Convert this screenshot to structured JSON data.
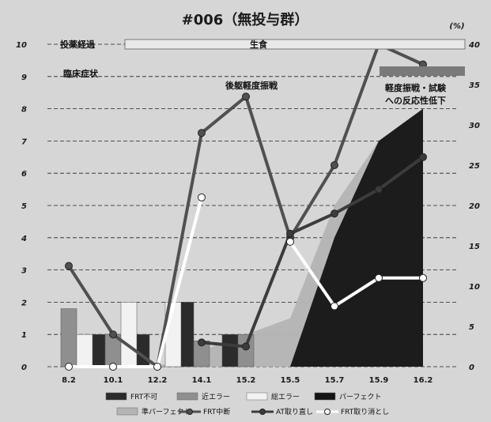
{
  "chart_data": {
    "type": "bar",
    "title": "#006（無投与群）",
    "y2_unit_label": "(%)",
    "categories": [
      "8.2",
      "10.1",
      "12.2",
      "14.1",
      "15.2",
      "15.5",
      "15.7",
      "15.9",
      "16.2"
    ],
    "ylim": [
      0,
      10
    ],
    "y_ticks": [
      "0",
      "1",
      "2",
      "3",
      "4",
      "5",
      "6",
      "7",
      "8",
      "9",
      "10"
    ],
    "y2lim": [
      0,
      40
    ],
    "y2_ticks": [
      "0",
      "5",
      "10",
      "15",
      "20",
      "25",
      "30",
      "35",
      "40"
    ],
    "grid": true,
    "legend_position": "bottom",
    "series": [
      {
        "name": "FRT不可",
        "kind": "bar",
        "axis": "left",
        "color": "#2b2b2b",
        "values": [
          0,
          1,
          1,
          2,
          1,
          0,
          0,
          0,
          0
        ]
      },
      {
        "name": "近エラー",
        "kind": "bar",
        "axis": "left",
        "color": "#8f8f8f",
        "values": [
          1.8,
          1,
          0,
          0.8,
          1,
          0,
          0,
          0,
          0
        ]
      },
      {
        "name": "総エラー",
        "kind": "bar",
        "axis": "left",
        "color": "#f2f2f2",
        "values": [
          1,
          2,
          2,
          0,
          0,
          0,
          0,
          0,
          0
        ]
      },
      {
        "name": "パーフェクト",
        "kind": "area",
        "axis": "left",
        "color": "#141414",
        "values": [
          0,
          0,
          0,
          0,
          0,
          0,
          4,
          7,
          8
        ]
      },
      {
        "name": "準パーフェクト",
        "kind": "area",
        "axis": "left",
        "color": "#b4b4b4",
        "values": [
          0,
          0,
          0,
          0.5,
          1,
          1.5,
          5,
          7,
          8
        ]
      },
      {
        "name": "FRT中断",
        "kind": "line",
        "axis": "right",
        "color": "#505050",
        "values": [
          12.5,
          4,
          0,
          29,
          33.5,
          16,
          25,
          40,
          37.5
        ]
      },
      {
        "name": "AT取り直し",
        "kind": "line",
        "axis": "right",
        "color": "#3c3c3c",
        "values": [
          null,
          0,
          null,
          3,
          2.5,
          16.5,
          19,
          22,
          26
        ]
      },
      {
        "name": "FRT取り消とし",
        "kind": "line",
        "axis": "right",
        "color": "#ffffff",
        "values": [
          0,
          0,
          0,
          21,
          null,
          15.5,
          7.5,
          11,
          11
        ]
      }
    ],
    "annotations": {
      "row1_label": "投薬経過",
      "row1_text": "生食",
      "row2_label": "臨床症状",
      "note1": "後躯軽度振戦",
      "note2_line1": "軽度振戦・試験",
      "note2_line2": "への反応性低下"
    }
  }
}
